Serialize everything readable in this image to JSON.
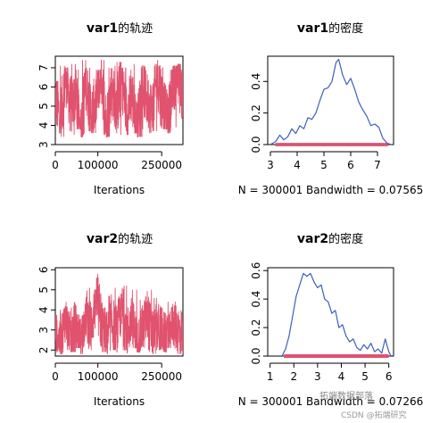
{
  "chart_data": [
    {
      "id": "trace1",
      "type": "line",
      "title_bold": "var1",
      "title_rest": "的轨迹",
      "xlabel": "Iterations",
      "xlim": [
        0,
        300001
      ],
      "ylim": [
        3,
        7.6
      ],
      "xticks": [
        0,
        100000,
        250000
      ],
      "xtick_labels": [
        "0",
        "100000",
        "250000"
      ],
      "yticks": [
        3,
        4,
        5,
        6,
        7
      ],
      "ytick_labels": [
        "3",
        "4",
        "5",
        "6",
        "7"
      ],
      "color": "#e0526e",
      "series": [
        {
          "x": [
            0,
            12000,
            24000,
            36000,
            48000,
            60000,
            72000,
            84000,
            96000,
            108000,
            120000,
            132000,
            144000,
            156000,
            168000,
            180000,
            192000,
            204000,
            216000,
            228000,
            240000,
            252000,
            264000,
            276000,
            288000,
            300001
          ],
          "y": [
            5.5,
            4.3,
            6.6,
            4.9,
            5.7,
            3.6,
            6.2,
            4.5,
            5.2,
            6.8,
            4.0,
            5.9,
            5.0,
            6.3,
            4.6,
            5.6,
            3.7,
            6.1,
            5.3,
            4.8,
            6.6,
            5.1,
            4.4,
            5.8,
            6.9,
            5.3
          ],
          "min": [
            3.6,
            3.4,
            3.7,
            3.5,
            3.8,
            3.4,
            3.7,
            3.6,
            3.9,
            3.5,
            3.4,
            3.8,
            3.5,
            3.7,
            3.5,
            3.6,
            3.4,
            3.8,
            3.6,
            3.7,
            3.5,
            3.8,
            3.6,
            3.9,
            3.4,
            3.8
          ],
          "max": [
            6.9,
            7.1,
            7.0,
            7.2,
            6.9,
            7.4,
            7.0,
            7.1,
            6.9,
            7.4,
            7.0,
            7.1,
            7.3,
            7.0,
            6.9,
            7.2,
            7.0,
            7.1,
            6.9,
            7.2,
            7.4,
            7.0,
            6.9,
            7.1,
            7.2,
            7.3
          ]
        }
      ]
    },
    {
      "id": "density1",
      "type": "line",
      "title_bold": "var1",
      "title_rest": "的密度",
      "xlabel": "N = 300001   Bandwidth = 0.07565",
      "xlim": [
        2.9,
        7.6
      ],
      "ylim": [
        0,
        0.56
      ],
      "xticks": [
        3,
        4,
        5,
        6,
        7
      ],
      "xtick_labels": [
        "3",
        "4",
        "5",
        "6",
        "7"
      ],
      "yticks": [
        0.0,
        0.2,
        0.4
      ],
      "ytick_labels": [
        "0.0",
        "0.2",
        "0.4"
      ],
      "color": "#3b5fc0",
      "rug_color": "#e0526e",
      "rug_range": [
        3.2,
        7.4
      ],
      "series": [
        {
          "x": [
            3.0,
            3.2,
            3.35,
            3.5,
            3.65,
            3.8,
            3.95,
            4.1,
            4.25,
            4.4,
            4.55,
            4.7,
            4.85,
            5.0,
            5.15,
            5.3,
            5.45,
            5.55,
            5.7,
            5.85,
            6.0,
            6.15,
            6.3,
            6.45,
            6.6,
            6.75,
            6.9,
            7.05,
            7.2,
            7.35,
            7.5
          ],
          "y": [
            0.0,
            0.02,
            0.06,
            0.03,
            0.05,
            0.1,
            0.07,
            0.12,
            0.1,
            0.17,
            0.16,
            0.2,
            0.28,
            0.35,
            0.36,
            0.4,
            0.52,
            0.54,
            0.44,
            0.38,
            0.42,
            0.35,
            0.27,
            0.22,
            0.18,
            0.12,
            0.13,
            0.11,
            0.04,
            0.01,
            0.0
          ]
        }
      ]
    },
    {
      "id": "trace2",
      "type": "line",
      "title_bold": "var2",
      "title_rest": "的轨迹",
      "xlabel": "Iterations",
      "xlim": [
        0,
        300001
      ],
      "ylim": [
        1.7,
        6.1
      ],
      "xticks": [
        0,
        100000,
        250000
      ],
      "xtick_labels": [
        "0",
        "100000",
        "250000"
      ],
      "yticks": [
        2,
        3,
        4,
        5,
        6
      ],
      "ytick_labels": [
        "2",
        "3",
        "4",
        "5",
        "6"
      ],
      "color": "#e0526e",
      "series": [
        {
          "x": [
            0,
            12000,
            24000,
            36000,
            48000,
            60000,
            72000,
            84000,
            96000,
            108000,
            120000,
            132000,
            144000,
            156000,
            168000,
            180000,
            192000,
            204000,
            216000,
            228000,
            240000,
            252000,
            264000,
            276000,
            288000,
            300001
          ],
          "y": [
            3.0,
            2.4,
            3.6,
            2.7,
            3.2,
            2.5,
            3.8,
            3.1,
            4.6,
            3.3,
            2.6,
            3.4,
            2.9,
            4.1,
            2.8,
            3.5,
            2.3,
            3.0,
            3.7,
            2.6,
            3.2,
            2.9,
            2.5,
            3.4,
            3.0,
            2.8
          ],
          "min": [
            1.9,
            1.8,
            2.0,
            1.9,
            2.1,
            1.8,
            2.0,
            1.9,
            2.2,
            1.9,
            1.8,
            2.0,
            1.9,
            2.0,
            1.8,
            2.1,
            1.9,
            2.0,
            1.9,
            1.8,
            2.0,
            1.9,
            2.1,
            1.9,
            1.8,
            2.0
          ],
          "max": [
            4.0,
            4.4,
            4.5,
            4.9,
            4.6,
            4.3,
            5.1,
            5.0,
            5.8,
            5.0,
            4.7,
            5.1,
            4.8,
            5.2,
            4.6,
            5.0,
            4.5,
            4.9,
            5.0,
            4.6,
            4.8,
            4.5,
            4.4,
            4.6,
            4.7,
            4.5
          ]
        }
      ]
    },
    {
      "id": "density2",
      "type": "line",
      "title_bold": "var2",
      "title_rest": "的密度",
      "xlabel": "N = 300001   Bandwidth = 0.07266",
      "xlim": [
        0.9,
        6.2
      ],
      "ylim": [
        0,
        0.62
      ],
      "xticks": [
        1,
        2,
        3,
        4,
        5,
        6
      ],
      "xtick_labels": [
        "1",
        "2",
        "3",
        "4",
        "5",
        "6"
      ],
      "yticks": [
        0.0,
        0.2,
        0.4,
        0.6
      ],
      "ytick_labels": [
        "0.0",
        "0.2",
        "0.4",
        "0.6"
      ],
      "color": "#3b5fc0",
      "rug_color": "#e0526e",
      "rug_range": [
        1.6,
        6.0
      ],
      "series": [
        {
          "x": [
            1.5,
            1.65,
            1.8,
            1.95,
            2.1,
            2.25,
            2.4,
            2.55,
            2.7,
            2.85,
            3.0,
            3.15,
            3.3,
            3.45,
            3.6,
            3.75,
            3.9,
            4.05,
            4.2,
            4.35,
            4.5,
            4.65,
            4.8,
            4.95,
            5.1,
            5.25,
            5.4,
            5.55,
            5.7,
            5.85,
            6.0,
            6.1
          ],
          "y": [
            0.0,
            0.05,
            0.14,
            0.28,
            0.42,
            0.5,
            0.58,
            0.56,
            0.58,
            0.52,
            0.48,
            0.5,
            0.4,
            0.38,
            0.3,
            0.32,
            0.2,
            0.22,
            0.14,
            0.1,
            0.12,
            0.06,
            0.04,
            0.08,
            0.05,
            0.09,
            0.03,
            0.05,
            0.02,
            0.12,
            0.03,
            0.0
          ]
        }
      ]
    }
  ],
  "watermark": {
    "line1": "拓端数据部落",
    "line2": "CSDN @拓端研究"
  }
}
